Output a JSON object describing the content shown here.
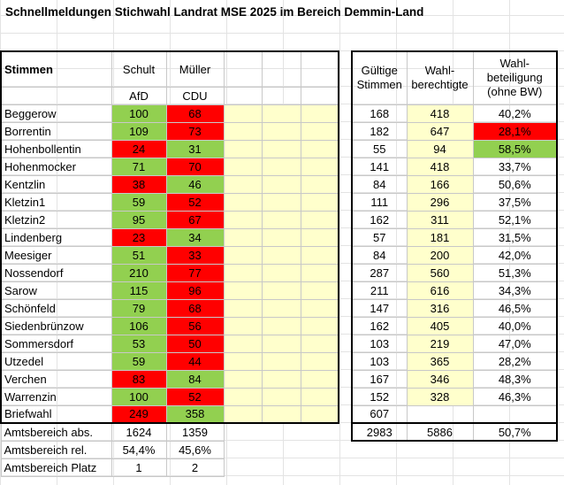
{
  "title": "Schnellmeldungen Stichwahl Landrat MSE 2025 im Bereich Demmin-Land",
  "left_header": {
    "stimmen": "Stimmen",
    "cand1": "Schult",
    "cand2": "Müller",
    "party1": "AfD",
    "party2": "CDU"
  },
  "right_header": {
    "gueltige1": "Gültige",
    "gueltige2": "Stimmen",
    "wahl1": "Wahl-",
    "wahl2": "berechtigte",
    "beteil1": "Wahl-",
    "beteil2": "beteiligung",
    "beteil3": "(ohne BW)"
  },
  "rows": [
    {
      "name": "Beggerow",
      "schult": "100",
      "mueller": "68",
      "s_color": "green",
      "m_color": "red",
      "gueltig": "168",
      "berechtigt": "418",
      "beteiligung": "40,2%",
      "b_color": "none"
    },
    {
      "name": "Borrentin",
      "schult": "109",
      "mueller": "73",
      "s_color": "green",
      "m_color": "red",
      "gueltig": "182",
      "berechtigt": "647",
      "beteiligung": "28,1%",
      "b_color": "red"
    },
    {
      "name": "Hohenbollentin",
      "schult": "24",
      "mueller": "31",
      "s_color": "red",
      "m_color": "green",
      "gueltig": "55",
      "berechtigt": "94",
      "beteiligung": "58,5%",
      "b_color": "green"
    },
    {
      "name": "Hohenmocker",
      "schult": "71",
      "mueller": "70",
      "s_color": "green",
      "m_color": "red",
      "gueltig": "141",
      "berechtigt": "418",
      "beteiligung": "33,7%",
      "b_color": "none"
    },
    {
      "name": "Kentzlin",
      "schult": "38",
      "mueller": "46",
      "s_color": "red",
      "m_color": "green",
      "gueltig": "84",
      "berechtigt": "166",
      "beteiligung": "50,6%",
      "b_color": "none"
    },
    {
      "name": "Kletzin1",
      "schult": "59",
      "mueller": "52",
      "s_color": "green",
      "m_color": "red",
      "gueltig": "111",
      "berechtigt": "296",
      "beteiligung": "37,5%",
      "b_color": "none"
    },
    {
      "name": "Kletzin2",
      "schult": "95",
      "mueller": "67",
      "s_color": "green",
      "m_color": "red",
      "gueltig": "162",
      "berechtigt": "311",
      "beteiligung": "52,1%",
      "b_color": "none"
    },
    {
      "name": "Lindenberg",
      "schult": "23",
      "mueller": "34",
      "s_color": "red",
      "m_color": "green",
      "gueltig": "57",
      "berechtigt": "181",
      "beteiligung": "31,5%",
      "b_color": "none"
    },
    {
      "name": "Meesiger",
      "schult": "51",
      "mueller": "33",
      "s_color": "green",
      "m_color": "red",
      "gueltig": "84",
      "berechtigt": "200",
      "beteiligung": "42,0%",
      "b_color": "none"
    },
    {
      "name": "Nossendorf",
      "schult": "210",
      "mueller": "77",
      "s_color": "green",
      "m_color": "red",
      "gueltig": "287",
      "berechtigt": "560",
      "beteiligung": "51,3%",
      "b_color": "none"
    },
    {
      "name": "Sarow",
      "schult": "115",
      "mueller": "96",
      "s_color": "green",
      "m_color": "red",
      "gueltig": "211",
      "berechtigt": "616",
      "beteiligung": "34,3%",
      "b_color": "none"
    },
    {
      "name": "Schönfeld",
      "schult": "79",
      "mueller": "68",
      "s_color": "green",
      "m_color": "red",
      "gueltig": "147",
      "berechtigt": "316",
      "beteiligung": "46,5%",
      "b_color": "none"
    },
    {
      "name": "Siedenbrünzow",
      "schult": "106",
      "mueller": "56",
      "s_color": "green",
      "m_color": "red",
      "gueltig": "162",
      "berechtigt": "405",
      "beteiligung": "40,0%",
      "b_color": "none"
    },
    {
      "name": "Sommersdorf",
      "schult": "53",
      "mueller": "50",
      "s_color": "green",
      "m_color": "red",
      "gueltig": "103",
      "berechtigt": "219",
      "beteiligung": "47,0%",
      "b_color": "none"
    },
    {
      "name": "Utzedel",
      "schult": "59",
      "mueller": "44",
      "s_color": "green",
      "m_color": "red",
      "gueltig": "103",
      "berechtigt": "365",
      "beteiligung": "28,2%",
      "b_color": "none"
    },
    {
      "name": "Verchen",
      "schult": "83",
      "mueller": "84",
      "s_color": "red",
      "m_color": "green",
      "gueltig": "167",
      "berechtigt": "346",
      "beteiligung": "48,3%",
      "b_color": "none"
    },
    {
      "name": "Warrenzin",
      "schult": "100",
      "mueller": "52",
      "s_color": "green",
      "m_color": "red",
      "gueltig": "152",
      "berechtigt": "328",
      "beteiligung": "46,3%",
      "b_color": "none"
    },
    {
      "name": "Briefwahl",
      "schult": "249",
      "mueller": "358",
      "s_color": "red",
      "m_color": "green",
      "gueltig": "607",
      "berechtigt": "",
      "beteiligung": "",
      "b_color": "none"
    }
  ],
  "abs": {
    "label": "Amtsbereich abs.",
    "schult": "1624",
    "mueller": "1359",
    "gueltig": "2983",
    "berechtigt": "5886",
    "beteiligung": "50,7%"
  },
  "rel": {
    "label": "Amtsbereich rel.",
    "schult": "54,4%",
    "mueller": "45,6%"
  },
  "platz": {
    "label": "Amtsbereich Platz",
    "schult": "1",
    "mueller": "2"
  },
  "colors": {
    "green": "#92d050",
    "red": "#ff0000",
    "yellow": "#ffffcc"
  }
}
